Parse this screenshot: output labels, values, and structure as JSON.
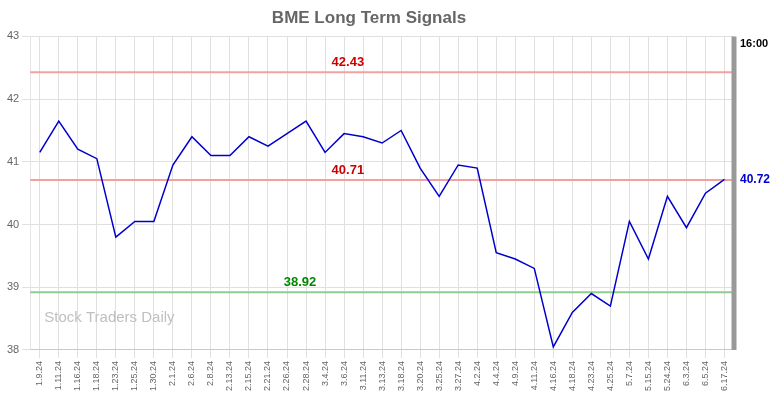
{
  "chart_data": {
    "type": "line",
    "title": "BME Long Term Signals",
    "categories": [
      "1.9.24",
      "1.11.24",
      "1.16.24",
      "1.18.24",
      "1.23.24",
      "1.25.24",
      "1.30.24",
      "2.1.24",
      "2.6.24",
      "2.8.24",
      "2.13.24",
      "2.15.24",
      "2.21.24",
      "2.26.24",
      "2.28.24",
      "3.4.24",
      "3.6.24",
      "3.11.24",
      "3.13.24",
      "3.18.24",
      "3.20.24",
      "3.25.24",
      "3.27.24",
      "4.2.24",
      "4.4.24",
      "4.9.24",
      "4.11.24",
      "4.16.24",
      "4.18.24",
      "4.23.24",
      "4.25.24",
      "5.7.24",
      "5.15.24",
      "5.24.24",
      "6.3.24",
      "6.5.24",
      "6.17.24"
    ],
    "values": [
      41.15,
      41.65,
      41.2,
      41.05,
      39.8,
      40.05,
      40.05,
      40.95,
      41.4,
      41.1,
      41.1,
      41.4,
      41.25,
      41.45,
      41.65,
      41.15,
      41.45,
      41.4,
      41.3,
      41.5,
      40.9,
      40.45,
      40.95,
      40.9,
      39.55,
      39.45,
      39.3,
      38.05,
      38.6,
      38.9,
      38.7,
      40.05,
      39.45,
      40.45,
      39.95,
      40.5,
      40.72
    ],
    "color": "#0000cc",
    "ylim": [
      38,
      43
    ],
    "yticks": [
      38,
      39,
      40,
      41,
      42,
      43
    ],
    "grid": true,
    "hlines": [
      {
        "y": 42.43,
        "color": "#f5a0a0",
        "label": "42.43",
        "label_color": "#cc0000"
      },
      {
        "y": 40.71,
        "color": "#f5a0a0",
        "label": "40.71",
        "label_color": "#cc0000"
      },
      {
        "y": 38.92,
        "color": "#90cc90",
        "label": "38.92",
        "label_color": "#008800"
      }
    ],
    "annotations": [
      {
        "text": "Stock Traders Daily",
        "color": "#c0c0c0"
      },
      {
        "text": "16:00"
      },
      {
        "text": "40.72",
        "y": 40.72,
        "color": "#0000cc"
      }
    ]
  }
}
